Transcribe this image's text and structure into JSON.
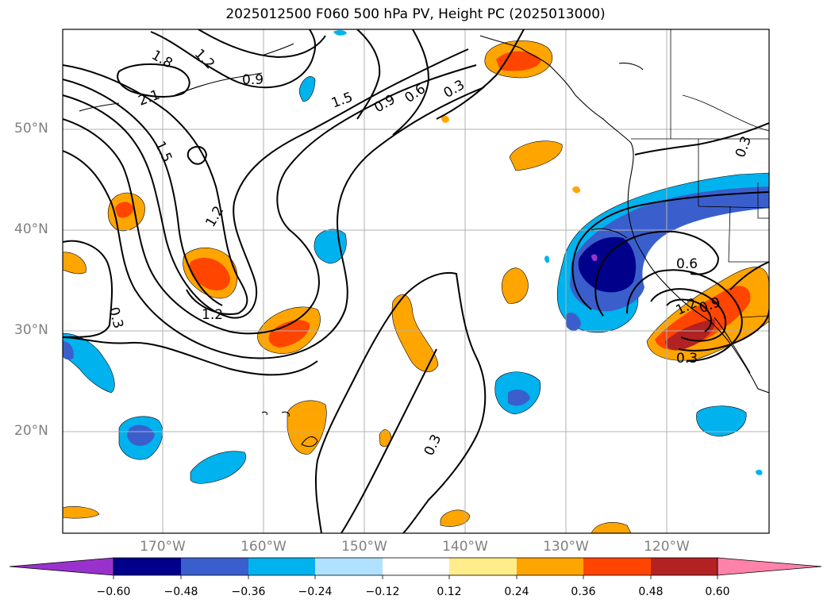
{
  "title": "2025012500 F060 500 hPa PV, Height PC (2025013000)",
  "map": {
    "lat_labels": [
      "50°N",
      "40°N",
      "30°N",
      "20°N"
    ],
    "lon_labels": [
      "170°W",
      "160°W",
      "150°W",
      "140°W",
      "130°W",
      "120°W"
    ],
    "contour_labels": [
      "1.8",
      "1.2",
      "0.9",
      "2.1",
      "1.5",
      "0.9",
      "0.6",
      "0.3",
      "1.5",
      "1.2",
      "1.2",
      "0.3",
      "0.3",
      "0.6",
      "1.2",
      "0.9",
      "0.3",
      "0.3"
    ]
  },
  "colorbar": {
    "ticks": [
      "−0.60",
      "−0.48",
      "−0.36",
      "−0.24",
      "−0.12",
      "0.12",
      "0.24",
      "0.36",
      "0.48",
      "0.60"
    ],
    "colors": [
      "#9932cc",
      "#00008b",
      "#3a5fcd",
      "#00b2ee",
      "#b0e2ff",
      "#ffffff",
      "#ffec8b",
      "#ffa500",
      "#ff4500",
      "#b22222",
      "#ff82ab"
    ]
  }
}
